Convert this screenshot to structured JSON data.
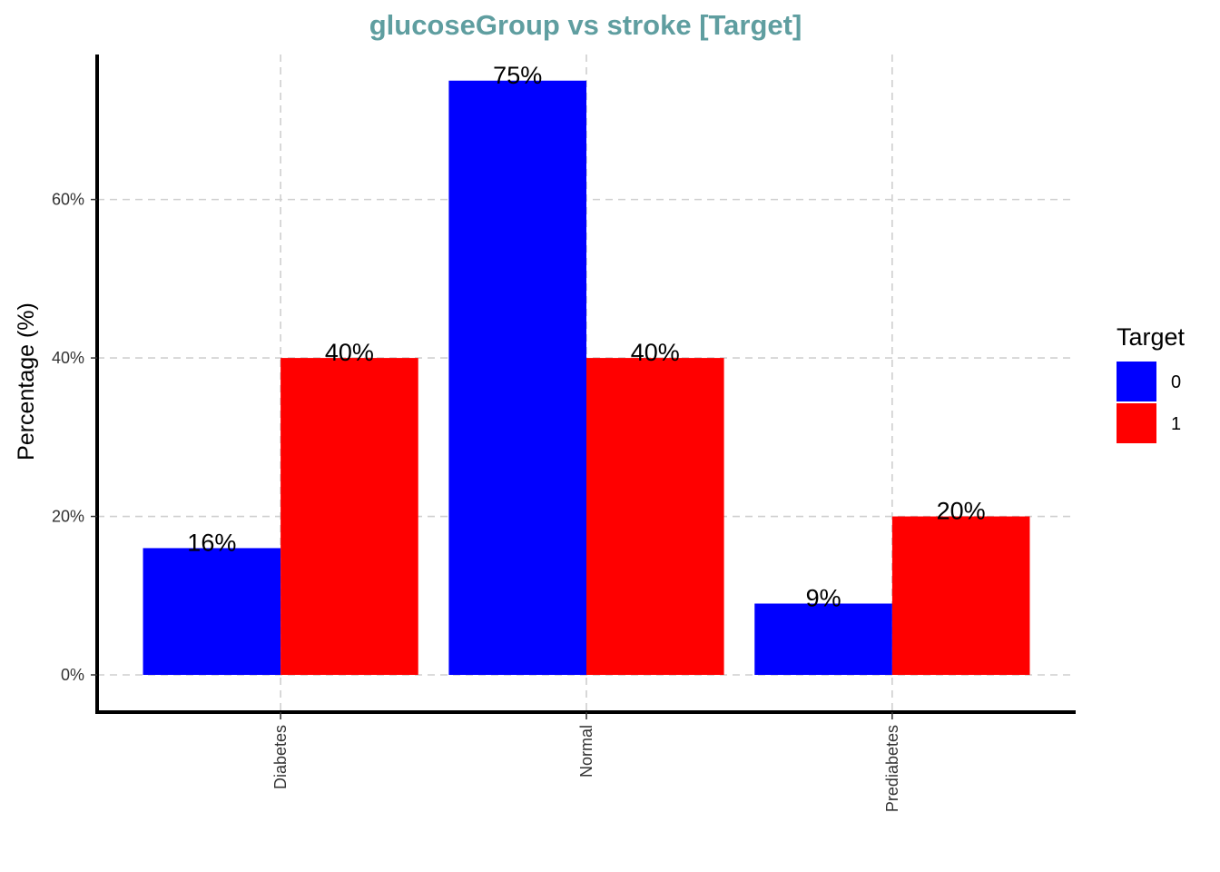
{
  "chart_data": {
    "type": "bar",
    "title": "glucoseGroup vs stroke [Target]",
    "title_color": "#5F9EA0",
    "xlabel": "",
    "ylabel": "Percentage (%)",
    "categories": [
      "Diabetes",
      "Normal",
      "Prediabetes"
    ],
    "ylim": [
      -4.7,
      78.3
    ],
    "y_ticks": [
      0,
      20,
      40,
      60
    ],
    "y_tick_labels": [
      "0%",
      "20%",
      "40%",
      "60%"
    ],
    "grid": true,
    "legend": {
      "title": "Target",
      "position": "right"
    },
    "series": [
      {
        "name": "0",
        "color": "#0000FF",
        "values": [
          16,
          75,
          9
        ],
        "labels": [
          "16%",
          "75%",
          "9%"
        ]
      },
      {
        "name": "1",
        "color": "#FF0000",
        "values": [
          40,
          40,
          20
        ],
        "labels": [
          "40%",
          "40%",
          "20%"
        ]
      }
    ]
  }
}
